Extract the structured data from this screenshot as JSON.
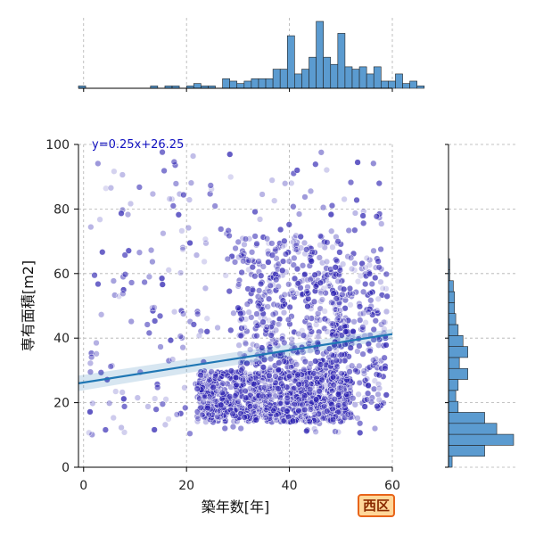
{
  "badge": {
    "label": "西区"
  },
  "chart_data": {
    "type": "scatter",
    "title": "",
    "xlabel": "築年数[年]",
    "ylabel": "専有面積[m2]",
    "xlim": [
      -1,
      60
    ],
    "ylim": [
      0,
      100
    ],
    "x_ticks": [
      0,
      20,
      40,
      60
    ],
    "y_ticks": [
      0,
      20,
      40,
      60,
      80,
      100
    ],
    "grid": true,
    "regression": {
      "equation": "y=0.25x+26.25",
      "slope": 0.25,
      "intercept": 26.25
    },
    "point_color": "#2a1fb0",
    "line_color": "#1f77b4",
    "hist_color": "#5b9bd0",
    "clusters": [
      {
        "x_range": [
          1,
          58
        ],
        "y_range": [
          10,
          98
        ],
        "count": 320
      },
      {
        "x_range": [
          22,
          52
        ],
        "y_range": [
          14,
          30
        ],
        "count": 900
      },
      {
        "x_range": [
          30,
          50
        ],
        "y_range": [
          30,
          72
        ],
        "count": 380
      },
      {
        "x_range": [
          48,
          59
        ],
        "y_range": [
          18,
          65
        ],
        "count": 220
      }
    ],
    "x_hist": {
      "edges_start": -1,
      "bin_width": 1.4,
      "counts": [
        1,
        0,
        0,
        0,
        0,
        0,
        0,
        0,
        0,
        0,
        1,
        0,
        1,
        1,
        0,
        1,
        2,
        1,
        1,
        0,
        4,
        3,
        2,
        3,
        4,
        4,
        4,
        8,
        8,
        22,
        6,
        8,
        13,
        28,
        13,
        10,
        23,
        9,
        8,
        9,
        6,
        9,
        3,
        3,
        6,
        2,
        3,
        1
      ]
    },
    "y_hist": {
      "bin_width": 3.4,
      "counts": [
        3,
        30,
        54,
        40,
        30,
        8,
        6,
        8,
        16,
        9,
        16,
        12,
        8,
        6,
        5,
        5,
        4,
        1,
        1,
        0,
        0,
        0,
        0,
        0,
        0,
        0,
        0,
        0,
        0
      ]
    }
  }
}
